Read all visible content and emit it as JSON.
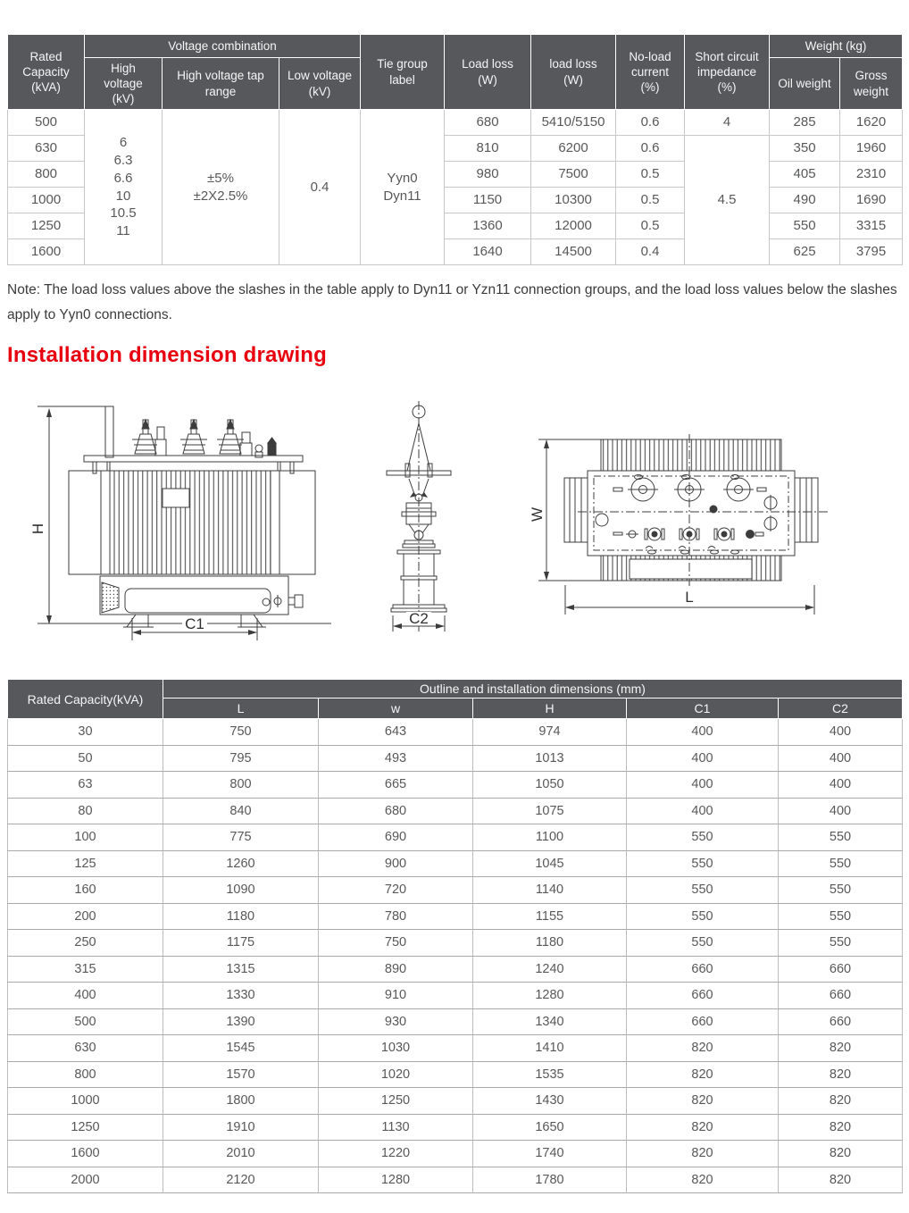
{
  "colors": {
    "header_bg": "#57585c",
    "heading_red": "#e8000f",
    "grid_gray": "#aaaaaa",
    "drawing_line": "#3c3c3c"
  },
  "spec_table": {
    "headers": {
      "rated_capacity": "Rated\nCapacity\n(kVA)",
      "voltage_combination": "Voltage combination",
      "high_voltage": "High\nvoltage\n(kV)",
      "tap_range": "High voltage tap\nrange",
      "low_voltage": "Low voltage\n(kV)",
      "tie_group": "Tie group\nlabel",
      "load_loss_1": "Load loss\n(W)",
      "load_loss_2": "load loss\n(W)",
      "no_load_current": "No-load\ncurrent\n(%)",
      "short_circuit": "Short circuit\nimpedance\n(%)",
      "weight": "Weight (kg)",
      "oil_weight": "Oil weight",
      "gross_weight": "Gross\nweight"
    },
    "merged": {
      "high_voltage_values": "6\n6.3\n6.6\n10\n10.5\n11",
      "tap_range_value": "±5%\n±2X2.5%",
      "low_voltage_value": "0.4",
      "tie_group_value": "Yyn0\nDyn11",
      "impedance_row1": "4",
      "impedance_rest": "4.5"
    },
    "rows": [
      {
        "capacity": "500",
        "load_loss": "680",
        "load_loss_2": "5410/5150",
        "no_load": "0.6",
        "oil": "285",
        "gross": "1620"
      },
      {
        "capacity": "630",
        "load_loss": "810",
        "load_loss_2": "6200",
        "no_load": "0.6",
        "oil": "350",
        "gross": "1960"
      },
      {
        "capacity": "800",
        "load_loss": "980",
        "load_loss_2": "7500",
        "no_load": "0.5",
        "oil": "405",
        "gross": "2310"
      },
      {
        "capacity": "1000",
        "load_loss": "1150",
        "load_loss_2": "10300",
        "no_load": "0.5",
        "oil": "490",
        "gross": "1690"
      },
      {
        "capacity": "1250",
        "load_loss": "1360",
        "load_loss_2": "12000",
        "no_load": "0.5",
        "oil": "550",
        "gross": "3315"
      },
      {
        "capacity": "1600",
        "load_loss": "1640",
        "load_loss_2": "14500",
        "no_load": "0.4",
        "oil": "625",
        "gross": "3795"
      }
    ]
  },
  "note": {
    "text": "Note: The load loss values above the slashes in the table apply to Dyn11 or Yzn11 connection groups, and the load loss values below the slashes apply to Yyn0 connections."
  },
  "section": {
    "title": "Installation dimension drawing"
  },
  "drawings": {
    "labels": {
      "h": "H",
      "c1": "C1",
      "c2": "C2",
      "w": "W",
      "l": "L"
    }
  },
  "dim_table": {
    "rated_capacity_header": "Rated Capacity(kVA)",
    "title": "Outline and installation dimensions (mm)",
    "col_headers": [
      "L",
      "w",
      "H",
      "C1",
      "C2"
    ],
    "rows": [
      [
        "30",
        "750",
        "643",
        "974",
        "400",
        "400"
      ],
      [
        "50",
        "795",
        "493",
        "1013",
        "400",
        "400"
      ],
      [
        "63",
        "800",
        "665",
        "1050",
        "400",
        "400"
      ],
      [
        "80",
        "840",
        "680",
        "1075",
        "400",
        "400"
      ],
      [
        "100",
        "775",
        "690",
        "1100",
        "550",
        "550"
      ],
      [
        "125",
        "1260",
        "900",
        "1045",
        "550",
        "550"
      ],
      [
        "160",
        "1090",
        "720",
        "1140",
        "550",
        "550"
      ],
      [
        "200",
        "1180",
        "780",
        "1155",
        "550",
        "550"
      ],
      [
        "250",
        "1175",
        "750",
        "1180",
        "550",
        "550"
      ],
      [
        "315",
        "1315",
        "890",
        "1240",
        "660",
        "660"
      ],
      [
        "400",
        "1330",
        "910",
        "1280",
        "660",
        "660"
      ],
      [
        "500",
        "1390",
        "930",
        "1340",
        "660",
        "660"
      ],
      [
        "630",
        "1545",
        "1030",
        "1410",
        "820",
        "820"
      ],
      [
        "800",
        "1570",
        "1020",
        "1535",
        "820",
        "820"
      ],
      [
        "1000",
        "1800",
        "1250",
        "1430",
        "820",
        "820"
      ],
      [
        "1250",
        "1910",
        "1130",
        "1650",
        "820",
        "820"
      ],
      [
        "1600",
        "2010",
        "1220",
        "1740",
        "820",
        "820"
      ],
      [
        "2000",
        "2120",
        "1280",
        "1780",
        "820",
        "820"
      ]
    ]
  }
}
